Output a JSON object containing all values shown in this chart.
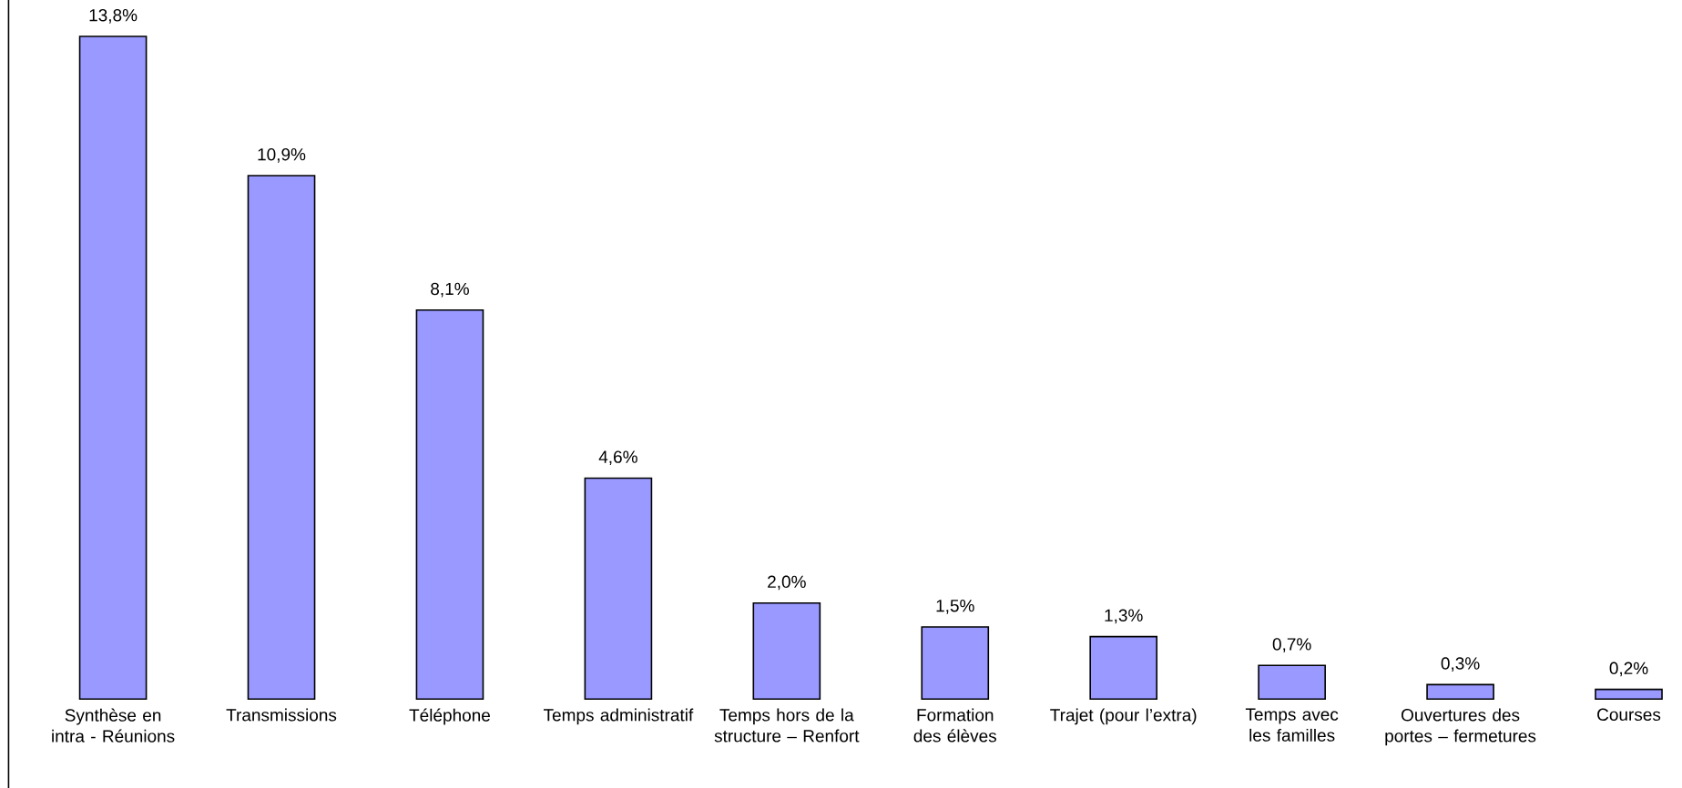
{
  "chart_data": {
    "type": "bar",
    "categories": [
      "Synthèse en intra - Réunions",
      "Transmissions",
      "Téléphone",
      "Temps administratif",
      "Temps hors de la structure – Renfort",
      "Formation des élèves",
      "Trajet (pour l’extra)",
      "Temps avec les familles",
      "Ouvertures des portes – fermetures",
      "Courses"
    ],
    "values": [
      13.8,
      10.9,
      8.1,
      4.6,
      2.0,
      1.5,
      1.3,
      0.7,
      0.3,
      0.2
    ],
    "value_labels": [
      "13,8%",
      "10,9%",
      "8,1%",
      "4,6%",
      "2,0%",
      "1,5%",
      "1,3%",
      "0,7%",
      "0,3%",
      "0,2%"
    ],
    "color": "#9999ff"
  }
}
